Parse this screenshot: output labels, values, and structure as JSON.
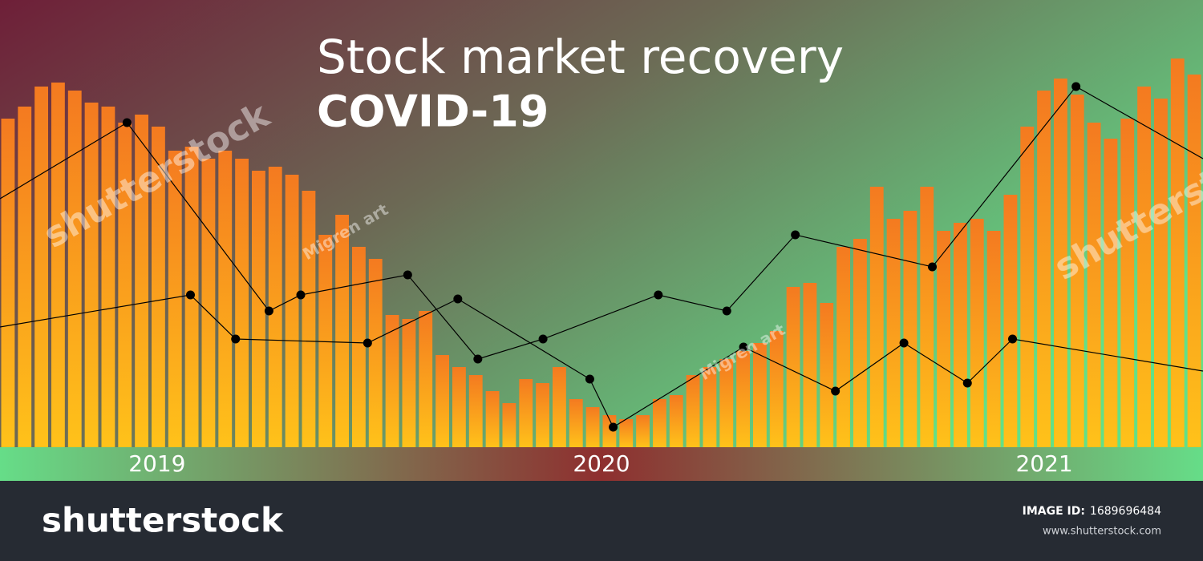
{
  "chart_data": {
    "type": "bar",
    "title": "Stock market recovery",
    "subtitle": "COVID-19",
    "values": [
      82,
      85,
      90,
      91,
      89,
      86,
      85,
      81,
      83,
      80,
      74,
      75,
      72,
      74,
      72,
      69,
      70,
      68,
      64,
      53,
      58,
      50,
      47,
      33,
      32,
      34,
      23,
      20,
      18,
      14,
      11,
      17,
      16,
      20,
      12,
      10,
      8,
      7,
      8,
      12,
      13,
      18,
      20,
      22,
      24,
      26,
      29,
      40,
      41,
      36,
      50,
      52,
      65,
      57,
      59,
      65,
      54,
      56,
      57,
      54,
      63,
      80,
      89,
      92,
      88,
      81,
      77,
      82,
      90,
      87,
      97,
      93
    ],
    "color": "#f47a20",
    "xlim": [
      0,
      72
    ],
    "ylim": [
      0,
      100
    ],
    "xticks": [
      {
        "value": 9.4,
        "label": "2019"
      },
      {
        "value": 36,
        "label": "2020"
      },
      {
        "value": 62.5,
        "label": "2021"
      }
    ],
    "lines": [
      {
        "type": "line",
        "color": "#000000",
        "x": [
          0,
          7.6,
          16.1,
          18.0,
          24.4,
          28.6,
          32.5,
          39.4,
          43.5,
          47.6,
          55.8,
          64.4,
          72
        ],
        "values": [
          62,
          81,
          34,
          38,
          43,
          22,
          27,
          38,
          34,
          53,
          45,
          90,
          72
        ]
      },
      {
        "type": "line",
        "color": "#000000",
        "x": [
          0,
          11.4,
          14.1,
          22.0,
          27.4,
          35.3,
          36.7,
          44.5,
          50.0,
          54.1,
          57.9,
          60.6,
          72
        ],
        "values": [
          30,
          38,
          27,
          26,
          37,
          17,
          5,
          25,
          14,
          26,
          16,
          27,
          19
        ]
      }
    ]
  },
  "watermarks": {
    "stock": "shutterstock",
    "author": "Migren art"
  },
  "footer": {
    "logo": "shutterstock",
    "image_id_label": "IMAGE ID:",
    "image_id": "1689696484",
    "url": "www.shutterstock.com"
  }
}
